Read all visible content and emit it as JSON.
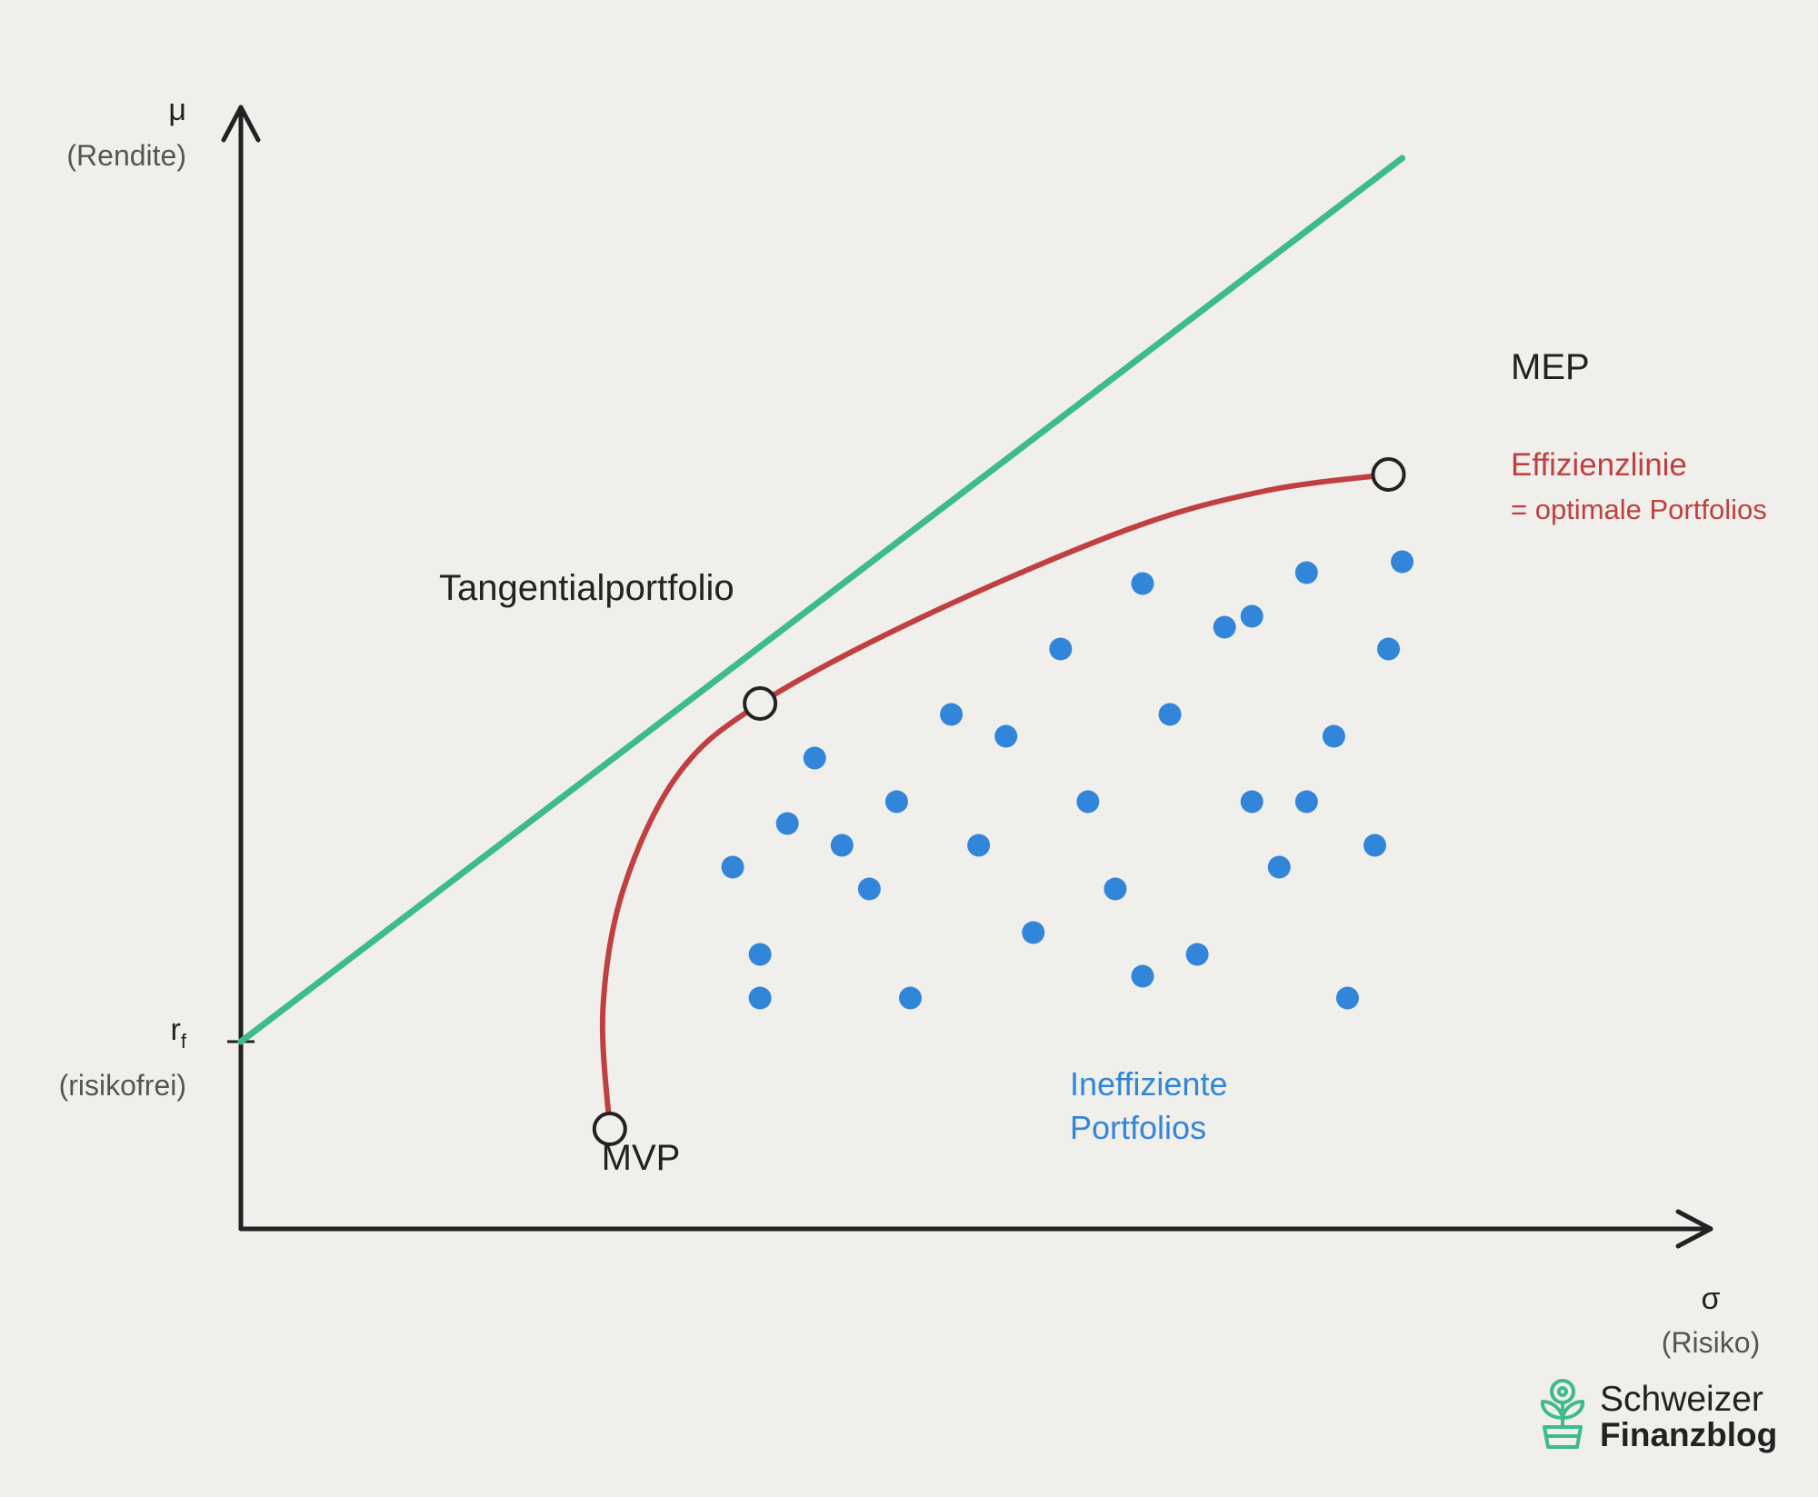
{
  "chart_data": {
    "type": "scatter",
    "title": "",
    "xlabel": "σ",
    "xlabel_sub": "(Risiko)",
    "ylabel": "μ",
    "ylabel_sub": "(Rendite)",
    "xlim": [
      0,
      10
    ],
    "ylim": [
      0,
      10
    ],
    "grid": false,
    "risk_free": {
      "label_main": "r",
      "label_sub": "f",
      "label_note": "(risikofrei)",
      "y": 1.4
    },
    "capital_market_line": {
      "color": "#3dbb8c",
      "from": {
        "x": 0,
        "y": 1.4
      },
      "to": {
        "x": 8.5,
        "y": 9.5
      }
    },
    "efficient_frontier": {
      "color": "#c04040",
      "label": "Effizienzlinie",
      "label_sub": "= optimale Portfolios",
      "points": [
        {
          "x": 2.7,
          "y": 0.6
        },
        {
          "x": 2.65,
          "y": 1.7
        },
        {
          "x": 2.8,
          "y": 2.8
        },
        {
          "x": 3.2,
          "y": 3.85
        },
        {
          "x": 3.8,
          "y": 4.5
        },
        {
          "x": 5.0,
          "y": 5.3
        },
        {
          "x": 6.5,
          "y": 6.1
        },
        {
          "x": 7.5,
          "y": 6.45
        },
        {
          "x": 8.4,
          "y": 6.6
        }
      ]
    },
    "special_points": [
      {
        "id": "mvp",
        "label": "MVP",
        "x": 2.7,
        "y": 0.6
      },
      {
        "id": "tangential",
        "label": "Tangentialportfolio",
        "x": 3.8,
        "y": 4.5
      },
      {
        "id": "mep",
        "label": "MEP",
        "x": 8.4,
        "y": 6.6
      }
    ],
    "inefficient_portfolios": {
      "label_line1": "Ineffiziente",
      "label_line2": "Portfolios",
      "color": "#3286d9",
      "points": [
        {
          "x": 3.6,
          "y": 3.0
        },
        {
          "x": 4.0,
          "y": 3.4
        },
        {
          "x": 4.4,
          "y": 3.2
        },
        {
          "x": 3.8,
          "y": 2.2
        },
        {
          "x": 3.8,
          "y": 1.8
        },
        {
          "x": 4.2,
          "y": 4.0
        },
        {
          "x": 4.6,
          "y": 2.8
        },
        {
          "x": 4.8,
          "y": 3.6
        },
        {
          "x": 4.9,
          "y": 1.8
        },
        {
          "x": 5.2,
          "y": 4.4
        },
        {
          "x": 5.4,
          "y": 3.2
        },
        {
          "x": 5.6,
          "y": 4.2
        },
        {
          "x": 5.8,
          "y": 2.4
        },
        {
          "x": 6.0,
          "y": 5.0
        },
        {
          "x": 6.2,
          "y": 3.6
        },
        {
          "x": 6.4,
          "y": 2.8
        },
        {
          "x": 6.6,
          "y": 5.6
        },
        {
          "x": 6.8,
          "y": 4.4
        },
        {
          "x": 6.6,
          "y": 2.0
        },
        {
          "x": 7.0,
          "y": 2.2
        },
        {
          "x": 7.2,
          "y": 5.2
        },
        {
          "x": 7.4,
          "y": 5.3
        },
        {
          "x": 7.4,
          "y": 3.6
        },
        {
          "x": 7.6,
          "y": 3.0
        },
        {
          "x": 7.8,
          "y": 5.7
        },
        {
          "x": 7.8,
          "y": 3.6
        },
        {
          "x": 8.0,
          "y": 4.2
        },
        {
          "x": 8.1,
          "y": 1.8
        },
        {
          "x": 8.3,
          "y": 3.2
        },
        {
          "x": 8.4,
          "y": 5.0
        },
        {
          "x": 8.5,
          "y": 5.8
        }
      ]
    }
  },
  "brand": {
    "name_line1": "Schweizer",
    "name_line2": "Finanzblog",
    "color": "#3dbb8c",
    "icon": "plant-pot-icon"
  }
}
